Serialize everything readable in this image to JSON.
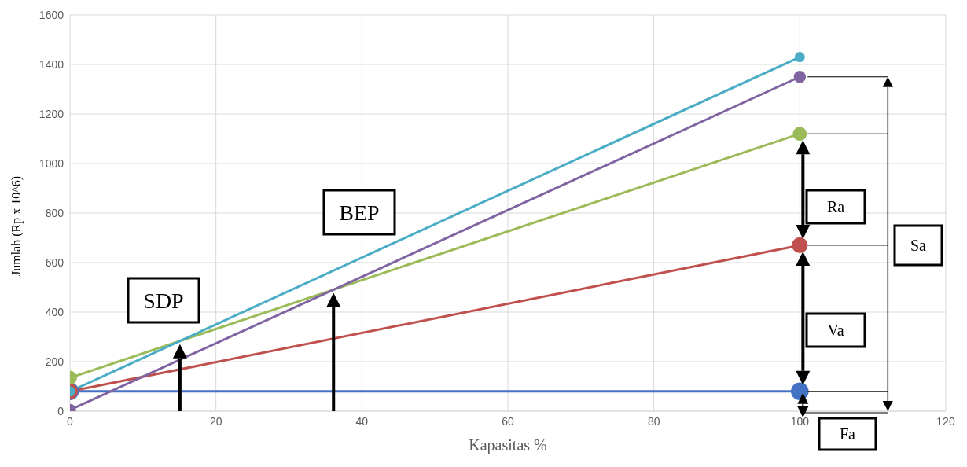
{
  "chart_data": {
    "type": "line",
    "xlabel": "Kapasitas %",
    "ylabel": "Jumlah (Rp x 10^6)",
    "x": [
      0,
      100
    ],
    "series": [
      {
        "color": "#4472c4",
        "values": [
          80,
          80
        ]
      },
      {
        "color": "#c0504d",
        "values": [
          80,
          670
        ]
      },
      {
        "color": "#9bbb59",
        "values": [
          135,
          1120
        ]
      },
      {
        "color": "#8064a2",
        "values": [
          5,
          1350
        ]
      },
      {
        "color": "#4bacc6",
        "values": [
          80,
          1430
        ]
      }
    ],
    "xlim": [
      0,
      120
    ],
    "xticks": [
      0,
      20,
      40,
      60,
      80,
      100,
      120
    ],
    "ylim": [
      0,
      1600
    ],
    "yticks": [
      0,
      200,
      400,
      600,
      800,
      1000,
      1200,
      1400,
      1600
    ],
    "grid": true,
    "marker": "circle",
    "line_style": "solid",
    "annotations": [
      "SDP",
      "BEP",
      "Ra",
      "Va",
      "Sa",
      "Fa"
    ]
  }
}
